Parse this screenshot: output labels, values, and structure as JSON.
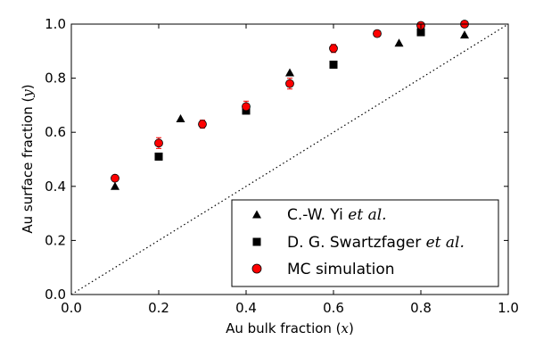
{
  "chart_data": {
    "type": "scatter",
    "xlabel": "Au bulk fraction (",
    "xlabel_var": "x",
    "xlabel_end": ")",
    "ylabel": "Au surface fraction (",
    "ylabel_var": "y",
    "ylabel_end": ")",
    "xlim": [
      0.0,
      1.0
    ],
    "ylim": [
      0.0,
      1.0
    ],
    "x_ticks": [
      "0.0",
      "0.2",
      "0.4",
      "0.6",
      "0.8",
      "1.0"
    ],
    "y_ticks": [
      "0.0",
      "0.2",
      "0.4",
      "0.6",
      "0.8",
      "1.0"
    ],
    "grid": false,
    "reference_line": {
      "style": "dotted",
      "from": [
        0,
        0
      ],
      "to": [
        1,
        1
      ],
      "color": "#000000"
    },
    "legend_position": "lower-right",
    "series": [
      {
        "name": "C.-W. Yi",
        "name_suffix": "et al.",
        "marker": "triangle",
        "color": "#000000",
        "points": [
          {
            "x": 0.1,
            "y": 0.4
          },
          {
            "x": 0.25,
            "y": 0.65
          },
          {
            "x": 0.5,
            "y": 0.82
          },
          {
            "x": 0.75,
            "y": 0.93
          },
          {
            "x": 0.9,
            "y": 0.96
          }
        ]
      },
      {
        "name": "D. G. Swartzfager",
        "name_suffix": "et al.",
        "marker": "square",
        "color": "#000000",
        "points": [
          {
            "x": 0.2,
            "y": 0.51
          },
          {
            "x": 0.4,
            "y": 0.68
          },
          {
            "x": 0.6,
            "y": 0.85
          },
          {
            "x": 0.8,
            "y": 0.97
          }
        ]
      },
      {
        "name": "MC simulation",
        "name_suffix": "",
        "marker": "circle",
        "color": "#ff0000",
        "error_bars": true,
        "points": [
          {
            "x": 0.1,
            "y": 0.43,
            "err": 0.01
          },
          {
            "x": 0.2,
            "y": 0.56,
            "err": 0.02
          },
          {
            "x": 0.3,
            "y": 0.63,
            "err": 0.015
          },
          {
            "x": 0.4,
            "y": 0.695,
            "err": 0.02
          },
          {
            "x": 0.5,
            "y": 0.78,
            "err": 0.02
          },
          {
            "x": 0.6,
            "y": 0.91,
            "err": 0.015
          },
          {
            "x": 0.7,
            "y": 0.965,
            "err": 0.01
          },
          {
            "x": 0.8,
            "y": 0.995,
            "err": 0.008
          },
          {
            "x": 0.9,
            "y": 1.0,
            "err": 0.005
          }
        ]
      }
    ]
  }
}
